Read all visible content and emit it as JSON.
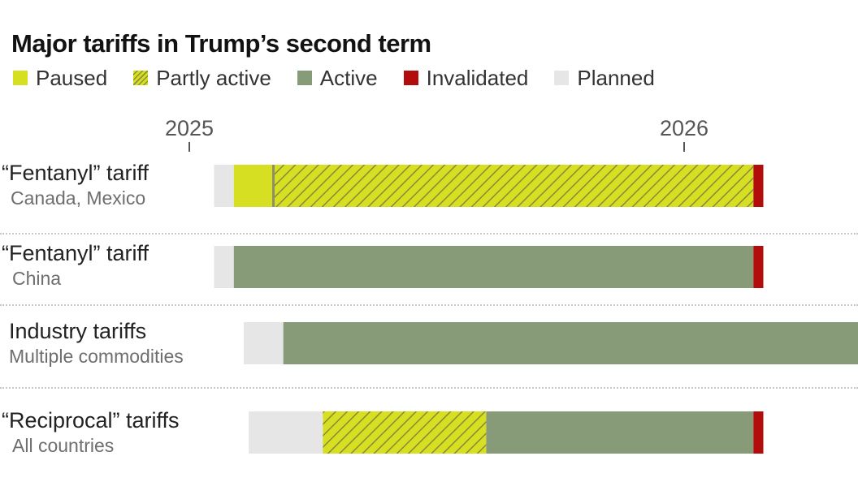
{
  "title": "Major tariffs in Trump’s second term",
  "legend": [
    {
      "key": "paused",
      "label": "Paused",
      "color": "#d7df23"
    },
    {
      "key": "partly",
      "label": "Partly active",
      "color": "#d7df23",
      "pattern": "hatched"
    },
    {
      "key": "active",
      "label": "Active",
      "color": "#889b78"
    },
    {
      "key": "invalidated",
      "label": "Invalidated",
      "color": "#b30c0c"
    },
    {
      "key": "planned",
      "label": "Planned",
      "color": "#e6e6e6"
    }
  ],
  "chart_data": {
    "type": "bar",
    "orientation": "horizontal-timeline",
    "x_ticks": [
      {
        "label": "2025",
        "value": 2025.0
      },
      {
        "label": "2026",
        "value": 2026.0
      }
    ],
    "xlim": [
      2024.97,
      2026.36
    ],
    "rows": [
      {
        "title": "“Fentanyl” tariff",
        "subtitle": "Canada, Mexico",
        "segments": [
          {
            "status": "planned",
            "start": 2025.05,
            "end": 2025.09
          },
          {
            "status": "paused",
            "start": 2025.09,
            "end": 2025.17
          },
          {
            "status": "partly",
            "start": 2025.17,
            "end": 2026.14
          },
          {
            "status": "invalidated",
            "start": 2026.14,
            "end": 2026.16
          }
        ]
      },
      {
        "title": "“Fentanyl” tariff",
        "subtitle": "China",
        "segments": [
          {
            "status": "planned",
            "start": 2025.05,
            "end": 2025.09
          },
          {
            "status": "active",
            "start": 2025.09,
            "end": 2026.14
          },
          {
            "status": "invalidated",
            "start": 2026.14,
            "end": 2026.16
          }
        ]
      },
      {
        "title": "Industry tariffs",
        "subtitle": "Multiple commodities",
        "segments": [
          {
            "status": "planned",
            "start": 2025.11,
            "end": 2025.19
          },
          {
            "status": "active",
            "start": 2025.19,
            "end": 2026.36
          }
        ]
      },
      {
        "title": "“Reciprocal” tariffs",
        "subtitle": "All countries",
        "segments": [
          {
            "status": "planned",
            "start": 2025.12,
            "end": 2025.27
          },
          {
            "status": "partly",
            "start": 2025.27,
            "end": 2025.6
          },
          {
            "status": "active",
            "start": 2025.6,
            "end": 2026.14
          },
          {
            "status": "invalidated",
            "start": 2026.14,
            "end": 2026.16
          }
        ]
      }
    ]
  }
}
